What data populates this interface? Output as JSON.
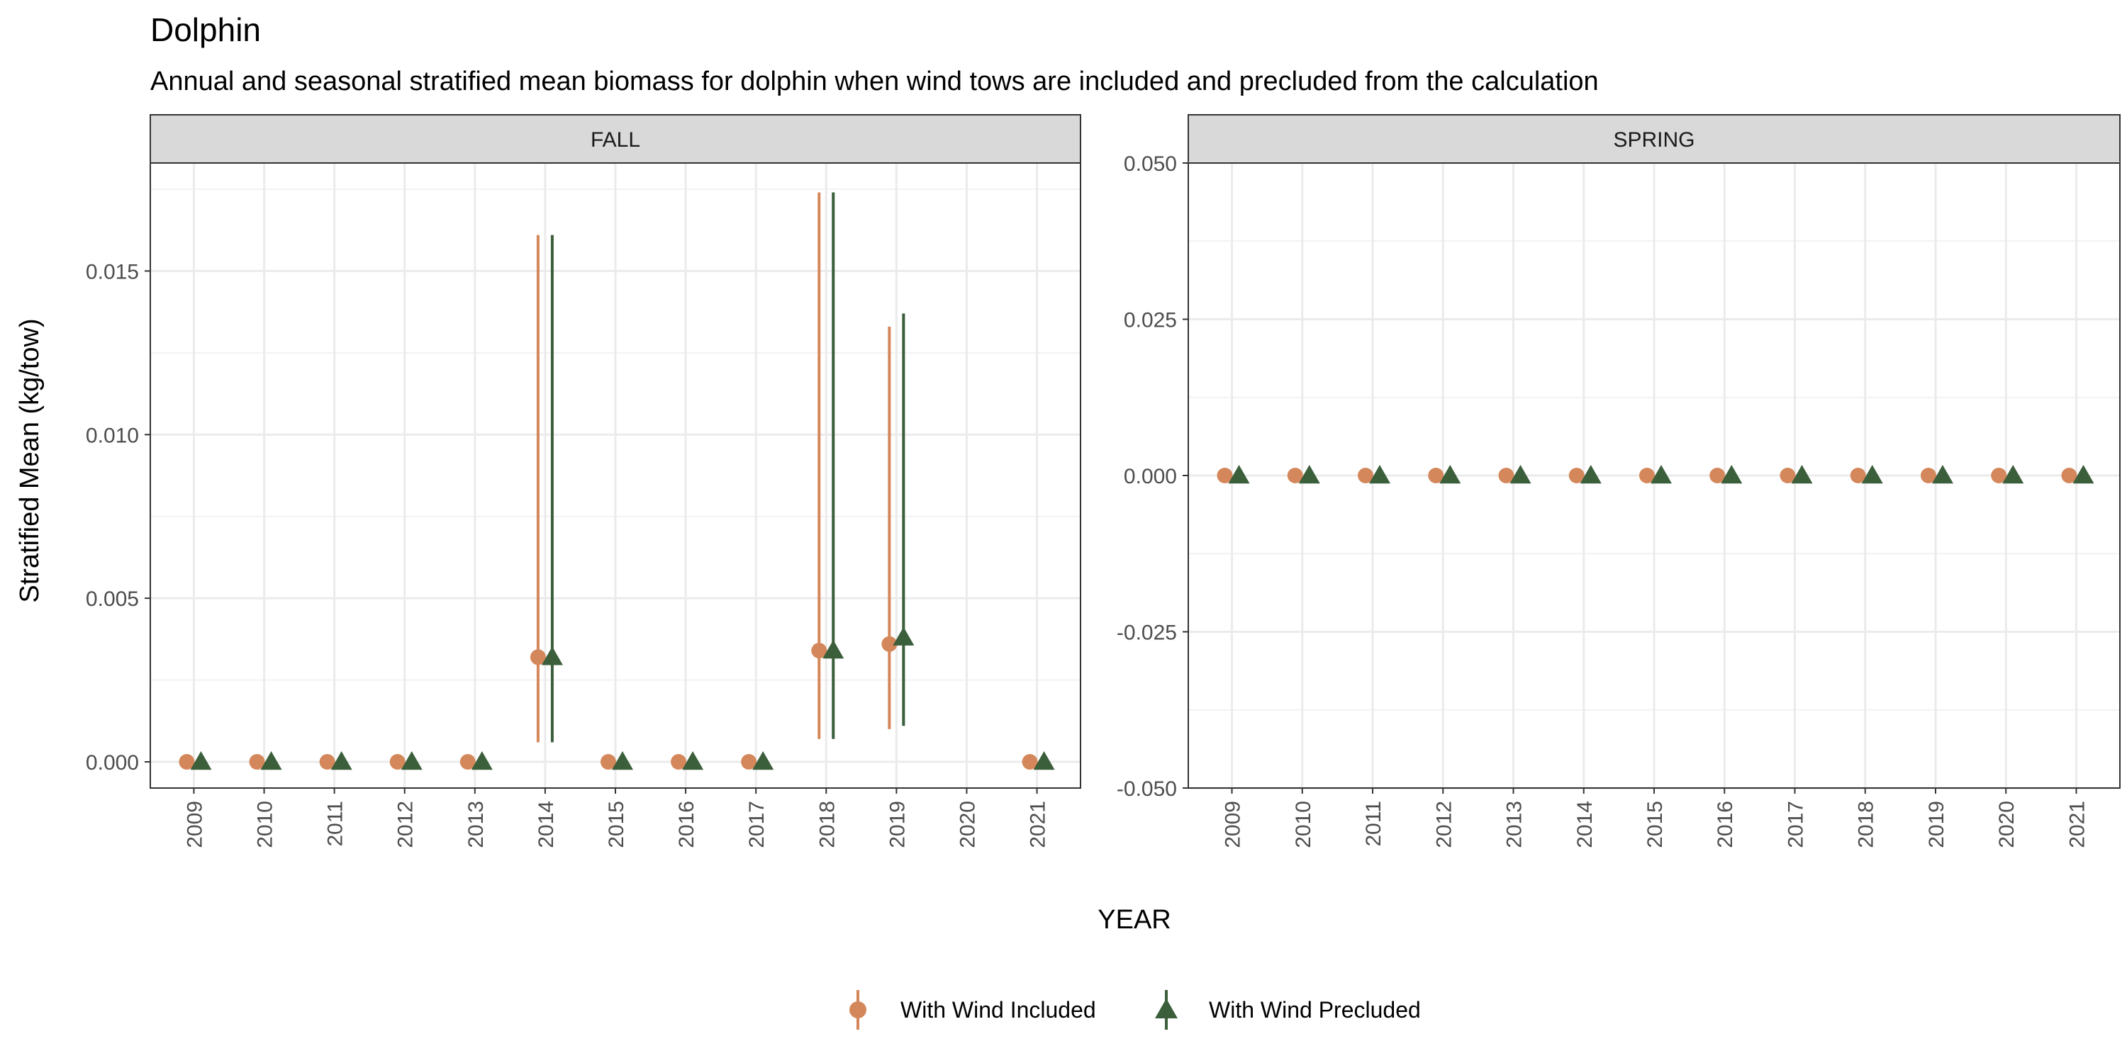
{
  "chart_data": {
    "type": "scatter",
    "title": "Dolphin",
    "subtitle": "Annual and seasonal stratified mean biomass for dolphin when wind tows are included and precluded from the calculation",
    "xlabel": "YEAR",
    "ylabel": "Stratified Mean (kg/tow)",
    "categories": [
      "2009",
      "2010",
      "2011",
      "2012",
      "2013",
      "2014",
      "2015",
      "2016",
      "2017",
      "2018",
      "2019",
      "2020",
      "2021"
    ],
    "legend_position": "bottom",
    "grid": true,
    "colors": {
      "included": "#D4875A",
      "precluded": "#3B5E3B"
    },
    "panels": [
      {
        "name": "FALL",
        "ylim": [
          -0.0008,
          0.0183
        ],
        "yticks": [
          0.0,
          0.005,
          0.01,
          0.015
        ],
        "ytick_labels": [
          "0.000",
          "0.005",
          "0.010",
          "0.015"
        ],
        "series": [
          {
            "name": "With Wind Included",
            "marker": "circle",
            "points": [
              {
                "x": "2009",
                "y": 0.0
              },
              {
                "x": "2010",
                "y": 0.0
              },
              {
                "x": "2011",
                "y": 0.0
              },
              {
                "x": "2012",
                "y": 0.0
              },
              {
                "x": "2013",
                "y": 0.0
              },
              {
                "x": "2014",
                "y": 0.0032,
                "ymin": 0.0006,
                "ymax": 0.0161
              },
              {
                "x": "2015",
                "y": 0.0
              },
              {
                "x": "2016",
                "y": 0.0
              },
              {
                "x": "2017",
                "y": 0.0
              },
              {
                "x": "2018",
                "y": 0.0034,
                "ymin": 0.0007,
                "ymax": 0.0174
              },
              {
                "x": "2019",
                "y": 0.0036,
                "ymin": 0.001,
                "ymax": 0.0133
              },
              {
                "x": "2021",
                "y": 0.0
              }
            ]
          },
          {
            "name": "With Wind Precluded",
            "marker": "triangle",
            "points": [
              {
                "x": "2009",
                "y": 0.0
              },
              {
                "x": "2010",
                "y": 0.0
              },
              {
                "x": "2011",
                "y": 0.0
              },
              {
                "x": "2012",
                "y": 0.0
              },
              {
                "x": "2013",
                "y": 0.0
              },
              {
                "x": "2014",
                "y": 0.0032,
                "ymin": 0.0006,
                "ymax": 0.0161
              },
              {
                "x": "2015",
                "y": 0.0
              },
              {
                "x": "2016",
                "y": 0.0
              },
              {
                "x": "2017",
                "y": 0.0
              },
              {
                "x": "2018",
                "y": 0.0034,
                "ymin": 0.0007,
                "ymax": 0.0174
              },
              {
                "x": "2019",
                "y": 0.0038,
                "ymin": 0.0011,
                "ymax": 0.0137
              },
              {
                "x": "2021",
                "y": 0.0
              }
            ]
          }
        ]
      },
      {
        "name": "SPRING",
        "ylim": [
          -0.05,
          0.05
        ],
        "yticks": [
          -0.05,
          -0.025,
          0.0,
          0.025,
          0.05
        ],
        "ytick_labels": [
          "-0.050",
          "-0.025",
          "0.000",
          "0.025",
          "0.050"
        ],
        "series": [
          {
            "name": "With Wind Included",
            "marker": "circle",
            "points": [
              {
                "x": "2009",
                "y": 0.0
              },
              {
                "x": "2010",
                "y": 0.0
              },
              {
                "x": "2011",
                "y": 0.0
              },
              {
                "x": "2012",
                "y": 0.0
              },
              {
                "x": "2013",
                "y": 0.0
              },
              {
                "x": "2014",
                "y": 0.0
              },
              {
                "x": "2015",
                "y": 0.0
              },
              {
                "x": "2016",
                "y": 0.0
              },
              {
                "x": "2017",
                "y": 0.0
              },
              {
                "x": "2018",
                "y": 0.0
              },
              {
                "x": "2019",
                "y": 0.0
              },
              {
                "x": "2020",
                "y": 0.0
              },
              {
                "x": "2021",
                "y": 0.0
              }
            ]
          },
          {
            "name": "With Wind Precluded",
            "marker": "triangle",
            "points": [
              {
                "x": "2009",
                "y": 0.0
              },
              {
                "x": "2010",
                "y": 0.0
              },
              {
                "x": "2011",
                "y": 0.0
              },
              {
                "x": "2012",
                "y": 0.0
              },
              {
                "x": "2013",
                "y": 0.0
              },
              {
                "x": "2014",
                "y": 0.0
              },
              {
                "x": "2015",
                "y": 0.0
              },
              {
                "x": "2016",
                "y": 0.0
              },
              {
                "x": "2017",
                "y": 0.0
              },
              {
                "x": "2018",
                "y": 0.0
              },
              {
                "x": "2019",
                "y": 0.0
              },
              {
                "x": "2020",
                "y": 0.0
              },
              {
                "x": "2021",
                "y": 0.0
              }
            ]
          }
        ]
      }
    ]
  }
}
